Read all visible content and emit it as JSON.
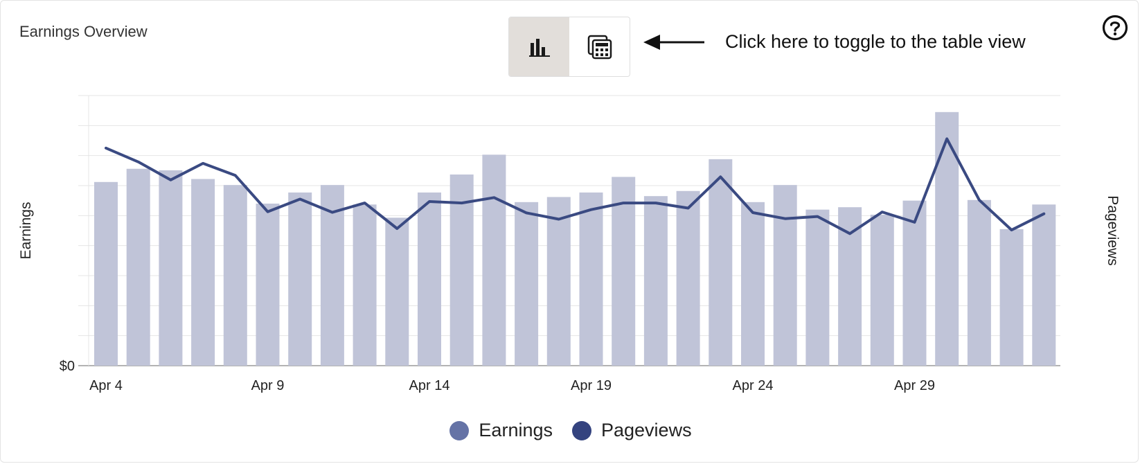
{
  "header": {
    "title": "Earnings Overview",
    "hint": "Click here to toggle to the table view",
    "chart_view_icon": "bar-chart-icon",
    "table_view_icon": "calculator-table-icon",
    "help_icon": "question-circle-icon",
    "arrow_icon": "arrow-left-icon"
  },
  "colors": {
    "bar": "#c0c4d8",
    "line": "#3a4a82",
    "earnings_legend": "#6573a6",
    "pageviews_legend": "#34437f",
    "grid": "#e5e5e5",
    "toggle_active": "#e2deda"
  },
  "chart_data": {
    "type": "bar",
    "categories": [
      "Apr 4",
      "Apr 5",
      "Apr 6",
      "Apr 7",
      "Apr 8",
      "Apr 9",
      "Apr 10",
      "Apr 11",
      "Apr 12",
      "Apr 13",
      "Apr 14",
      "Apr 15",
      "Apr 16",
      "Apr 17",
      "Apr 18",
      "Apr 19",
      "Apr 20",
      "Apr 21",
      "Apr 22",
      "Apr 23",
      "Apr 24",
      "Apr 25",
      "Apr 26",
      "Apr 27",
      "Apr 28",
      "Apr 29",
      "Apr 30",
      "May 1",
      "May 2",
      "May 3"
    ],
    "x_tick_labels": [
      {
        "label": "Apr 4",
        "index": 0
      },
      {
        "label": "Apr 9",
        "index": 5
      },
      {
        "label": "Apr 14",
        "index": 10
      },
      {
        "label": "Apr 19",
        "index": 15
      },
      {
        "label": "Apr 24",
        "index": 20
      },
      {
        "label": "Apr 29",
        "index": 25
      }
    ],
    "y_tick_label": "$0",
    "ylabel_left": "Earnings",
    "ylabel_right": "Pageviews",
    "ylim": [
      0,
      9
    ],
    "grid": true,
    "legend_position": "bottom-center",
    "series": [
      {
        "name": "Earnings",
        "type": "bar",
        "values": [
          6.12,
          6.56,
          6.51,
          6.22,
          6.02,
          5.4,
          5.77,
          6.02,
          5.37,
          4.93,
          5.77,
          6.37,
          7.03,
          5.45,
          5.62,
          5.77,
          6.29,
          5.65,
          5.82,
          6.88,
          5.45,
          6.02,
          5.2,
          5.28,
          5.03,
          5.5,
          8.45,
          5.52,
          4.55,
          5.37
        ]
      },
      {
        "name": "Pageviews",
        "type": "line",
        "values": [
          7.25,
          6.79,
          6.19,
          6.74,
          6.34,
          5.13,
          5.55,
          5.11,
          5.42,
          4.57,
          5.47,
          5.42,
          5.6,
          5.09,
          4.88,
          5.2,
          5.42,
          5.42,
          5.25,
          6.29,
          5.1,
          4.9,
          4.97,
          4.4,
          5.12,
          4.78,
          7.56,
          5.52,
          4.52,
          5.06
        ]
      }
    ]
  },
  "legend": {
    "items": [
      {
        "label": "Earnings"
      },
      {
        "label": "Pageviews"
      }
    ]
  }
}
